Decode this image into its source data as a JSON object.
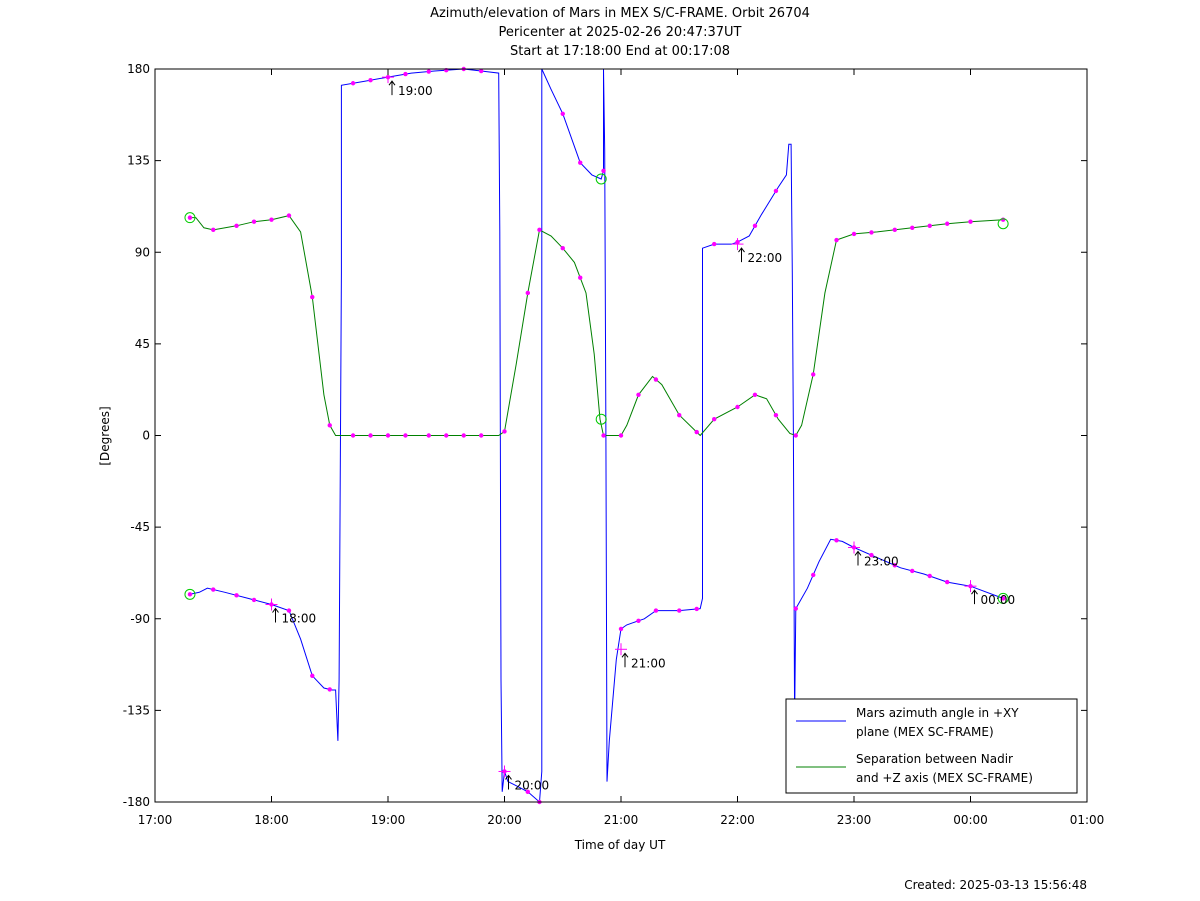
{
  "chart_data": {
    "type": "line",
    "title": [
      "Azimuth/elevation of Mars in MEX S/C-FRAME.  Orbit 26704",
      "Pericenter at 2025-02-26 20:47:37UT",
      "Start at 17:18:00 End at 00:17:08"
    ],
    "xlabel": "Time of day UT",
    "ylabel": "[Degrees]",
    "xlim": [
      17.0,
      25.0
    ],
    "ylim": [
      -180,
      180
    ],
    "x_ticks": [
      {
        "value": 17,
        "label": "17:00"
      },
      {
        "value": 18,
        "label": "18:00"
      },
      {
        "value": 19,
        "label": "19:00"
      },
      {
        "value": 20,
        "label": "20:00"
      },
      {
        "value": 21,
        "label": "21:00"
      },
      {
        "value": 22,
        "label": "22:00"
      },
      {
        "value": 23,
        "label": "23:00"
      },
      {
        "value": 24,
        "label": "00:00"
      },
      {
        "value": 25,
        "label": "01:00"
      }
    ],
    "y_ticks": [
      {
        "value": 180,
        "label": "180"
      },
      {
        "value": 135,
        "label": "135"
      },
      {
        "value": 90,
        "label": "90"
      },
      {
        "value": 45,
        "label": "45"
      },
      {
        "value": 0,
        "label": "0"
      },
      {
        "value": -45,
        "label": "-45"
      },
      {
        "value": -90,
        "label": "-90"
      },
      {
        "value": -135,
        "label": "-135"
      },
      {
        "value": -180,
        "label": "-180"
      }
    ],
    "grid": false,
    "legend_position": "bottom-right",
    "series": [
      {
        "name": "Mars azimuth angle in +XY plane (MEX SC-FRAME)",
        "legend_lines": [
          "Mars azimuth angle in +XY",
          "plane (MEX SC-FRAME)"
        ],
        "color": "#0000ff",
        "segments": [
          [
            [
              17.3,
              -78
            ],
            [
              17.38,
              -77
            ],
            [
              17.45,
              -75
            ],
            [
              17.6,
              -77
            ],
            [
              17.8,
              -80
            ],
            [
              18.0,
              -83
            ],
            [
              18.15,
              -86
            ],
            [
              18.25,
              -100
            ],
            [
              18.35,
              -118
            ],
            [
              18.45,
              -124
            ],
            [
              18.52,
              -125
            ],
            [
              18.55,
              -125
            ],
            [
              18.57,
              -150
            ],
            [
              18.58,
              -120
            ],
            [
              18.6,
              80
            ],
            [
              18.6,
              172
            ],
            [
              18.8,
              174
            ],
            [
              19.0,
              176
            ],
            [
              19.2,
              178
            ],
            [
              19.4,
              179
            ],
            [
              19.65,
              180
            ],
            [
              19.8,
              179
            ],
            [
              19.95,
              178
            ],
            [
              19.96,
              100
            ],
            [
              19.97,
              -120
            ],
            [
              19.98,
              -175
            ],
            [
              20.0,
              -165
            ],
            [
              20.03,
              -170
            ],
            [
              20.1,
              -172
            ],
            [
              20.2,
              -175
            ],
            [
              20.3,
              -180
            ],
            [
              20.32,
              -165
            ],
            [
              20.32,
              180
            ],
            [
              20.4,
              170
            ],
            [
              20.5,
              158
            ],
            [
              20.65,
              134
            ],
            [
              20.75,
              128
            ],
            [
              20.83,
              126
            ],
            [
              20.85,
              130
            ],
            [
              20.85,
              180
            ],
            [
              20.86,
              140
            ],
            [
              20.87,
              0
            ],
            [
              20.88,
              -170
            ],
            [
              20.9,
              -150
            ],
            [
              20.93,
              -130
            ],
            [
              20.96,
              -110
            ],
            [
              21.0,
              -95
            ],
            [
              21.05,
              -93
            ],
            [
              21.1,
              -92
            ],
            [
              21.2,
              -90
            ],
            [
              21.3,
              -86
            ],
            [
              21.5,
              -86
            ],
            [
              21.68,
              -85
            ],
            [
              21.7,
              -80
            ],
            [
              21.7,
              92
            ],
            [
              21.8,
              94
            ],
            [
              21.95,
              94
            ],
            [
              22.0,
              95
            ],
            [
              22.1,
              98
            ],
            [
              22.2,
              108
            ],
            [
              22.35,
              122
            ],
            [
              22.42,
              128
            ],
            [
              22.44,
              143
            ],
            [
              22.46,
              143
            ],
            [
              22.47,
              80
            ],
            [
              22.48,
              0
            ],
            [
              22.49,
              -140
            ],
            [
              22.5,
              -85
            ],
            [
              22.6,
              -75
            ],
            [
              22.7,
              -62
            ],
            [
              22.8,
              -51
            ],
            [
              22.9,
              -52
            ],
            [
              23.0,
              -55
            ],
            [
              23.2,
              -60
            ],
            [
              23.4,
              -65
            ],
            [
              23.6,
              -68
            ],
            [
              23.8,
              -72
            ],
            [
              24.0,
              -74
            ],
            [
              24.28,
              -80
            ]
          ]
        ]
      },
      {
        "name": "Separation between Nadir and +Z axis (MEX SC-FRAME)",
        "legend_lines": [
          "Separation between Nadir",
          "and +Z axis (MEX SC-FRAME)"
        ],
        "color": "#008000",
        "segments": [
          [
            [
              17.3,
              107
            ],
            [
              17.35,
              107
            ],
            [
              17.42,
              102
            ],
            [
              17.5,
              101
            ],
            [
              17.7,
              103
            ],
            [
              17.85,
              105
            ],
            [
              18.0,
              106
            ],
            [
              18.15,
              108
            ],
            [
              18.25,
              100
            ],
            [
              18.35,
              68
            ],
            [
              18.45,
              20
            ],
            [
              18.5,
              5
            ],
            [
              18.55,
              0
            ],
            [
              18.7,
              0
            ],
            [
              19.0,
              0
            ],
            [
              19.5,
              0
            ],
            [
              19.95,
              0
            ],
            [
              20.0,
              2
            ],
            [
              20.1,
              35
            ],
            [
              20.2,
              70
            ],
            [
              20.3,
              101
            ],
            [
              20.4,
              98
            ],
            [
              20.5,
              92
            ],
            [
              20.6,
              85
            ],
            [
              20.7,
              70
            ],
            [
              20.77,
              40
            ],
            [
              20.82,
              8
            ],
            [
              20.85,
              0
            ],
            [
              21.0,
              0
            ],
            [
              21.05,
              5
            ],
            [
              21.15,
              20
            ],
            [
              21.27,
              29
            ],
            [
              21.35,
              25
            ],
            [
              21.5,
              10
            ],
            [
              21.68,
              0
            ],
            [
              21.8,
              8
            ],
            [
              22.0,
              14
            ],
            [
              22.15,
              20
            ],
            [
              22.25,
              18
            ],
            [
              22.35,
              8
            ],
            [
              22.45,
              1
            ],
            [
              22.5,
              0
            ],
            [
              22.55,
              5
            ],
            [
              22.65,
              30
            ],
            [
              22.75,
              70
            ],
            [
              22.85,
              96
            ],
            [
              23.0,
              99
            ],
            [
              23.2,
              100
            ],
            [
              23.5,
              102
            ],
            [
              23.8,
              104
            ],
            [
              24.0,
              105
            ],
            [
              24.28,
              106
            ]
          ]
        ]
      }
    ],
    "markers": {
      "magenta_x": [
        17.3,
        17.5,
        17.7,
        17.85,
        18.0,
        18.15,
        18.35,
        18.5,
        18.7,
        18.85,
        19.0,
        19.15,
        19.35,
        19.5,
        19.65,
        19.8,
        20.0,
        20.2,
        20.3,
        20.5,
        20.65,
        20.85,
        21.0,
        21.15,
        21.3,
        21.5,
        21.65,
        21.8,
        22.0,
        22.15,
        22.33,
        22.5,
        22.65,
        22.85,
        23.0,
        23.15,
        23.35,
        23.5,
        23.65,
        23.8,
        24.0,
        24.28
      ],
      "green_circles": [
        {
          "x": 17.3,
          "y": -78
        },
        {
          "x": 17.3,
          "y": 107
        },
        {
          "x": 24.28,
          "y": -80
        },
        {
          "x": 24.28,
          "y": 104
        },
        {
          "x": 20.83,
          "y": 126
        },
        {
          "x": 20.83,
          "y": 8
        }
      ],
      "time_labels": [
        {
          "x": 18.0,
          "y": -83,
          "label": "18:00"
        },
        {
          "x": 19.0,
          "y": 176,
          "label": "19:00"
        },
        {
          "x": 20.0,
          "y": -165,
          "label": "20:00"
        },
        {
          "x": 21.0,
          "y": -105,
          "label": "21:00"
        },
        {
          "x": 22.0,
          "y": 94,
          "label": "22:00"
        },
        {
          "x": 23.0,
          "y": -55,
          "label": "23:00"
        },
        {
          "x": 24.0,
          "y": -74,
          "label": "00:00"
        }
      ]
    },
    "annotation": "Created: 2025-03-13 15:56:48"
  }
}
